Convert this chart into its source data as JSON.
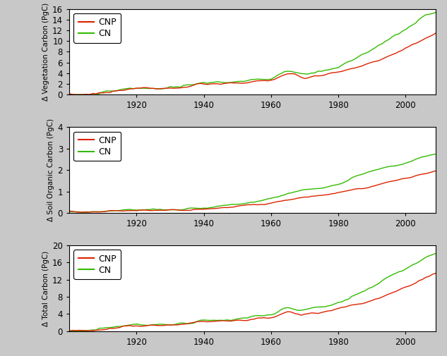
{
  "color_cnp": "#dd2200",
  "color_cn": "#33bb00",
  "xlim": [
    1900,
    2009
  ],
  "veg_ylim": [
    0,
    16
  ],
  "veg_yticks": [
    0,
    2,
    4,
    6,
    8,
    10,
    12,
    14,
    16
  ],
  "soil_ylim": [
    0,
    4
  ],
  "soil_yticks": [
    0,
    1,
    2,
    3,
    4
  ],
  "total_ylim": [
    0,
    20
  ],
  "total_yticks": [
    0,
    4,
    8,
    12,
    16,
    20
  ],
  "xticks": [
    1920,
    1940,
    1960,
    1980,
    2000
  ],
  "ylabel_veg": "Δ Vegetation Carbon (PgC)",
  "ylabel_soil": "Δ Soil Organic Carbon (PgC)",
  "ylabel_total": "Δ Total Carbon (PgC)",
  "legend_cnp": "CNP",
  "legend_cn": "CN",
  "bg_color": "#c8c8c8",
  "panel_bg": "#ffffff",
  "linewidth": 1.0,
  "noise_seed": 42
}
